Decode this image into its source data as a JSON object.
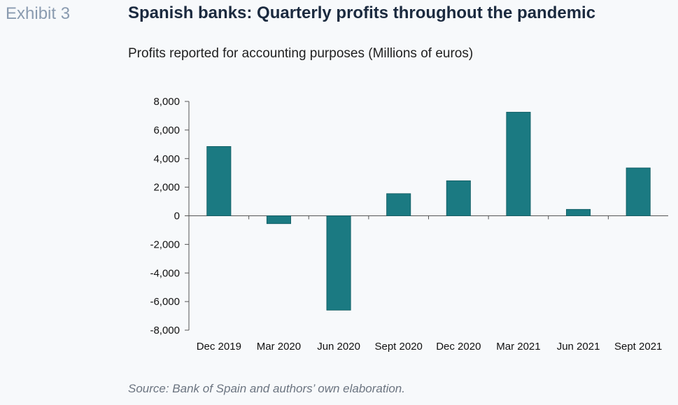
{
  "header": {
    "exhibit": "Exhibit 3",
    "title": "Spanish banks: Quarterly profits throughout the pandemic",
    "subtitle": "Profits reported for accounting purposes (Millions of euros)"
  },
  "footer": {
    "source": "Source: Bank of Spain and authors’ own elaboration."
  },
  "colors": {
    "bar": "#1b7a82",
    "axis": "#555555"
  },
  "chart_data": {
    "type": "bar",
    "categories": [
      "Dec 2019",
      "Mar 2020",
      "Jun 2020",
      "Sept 2020",
      "Dec 2020",
      "Mar 2021",
      "Jun 2021",
      "Sept 2021"
    ],
    "values": [
      4850,
      -550,
      -6600,
      1550,
      2450,
      7250,
      450,
      3350
    ],
    "ylim": [
      -8000,
      8000
    ],
    "yticks": [
      8000,
      6000,
      4000,
      2000,
      0,
      -2000,
      -4000,
      -6000,
      -8000
    ],
    "ytick_labels": [
      "8,000",
      "6,000",
      "4,000",
      "2,000",
      "0",
      "-2,000",
      "-4,000",
      "-6,000",
      "-8,000"
    ],
    "grid": false,
    "legend": "none"
  }
}
